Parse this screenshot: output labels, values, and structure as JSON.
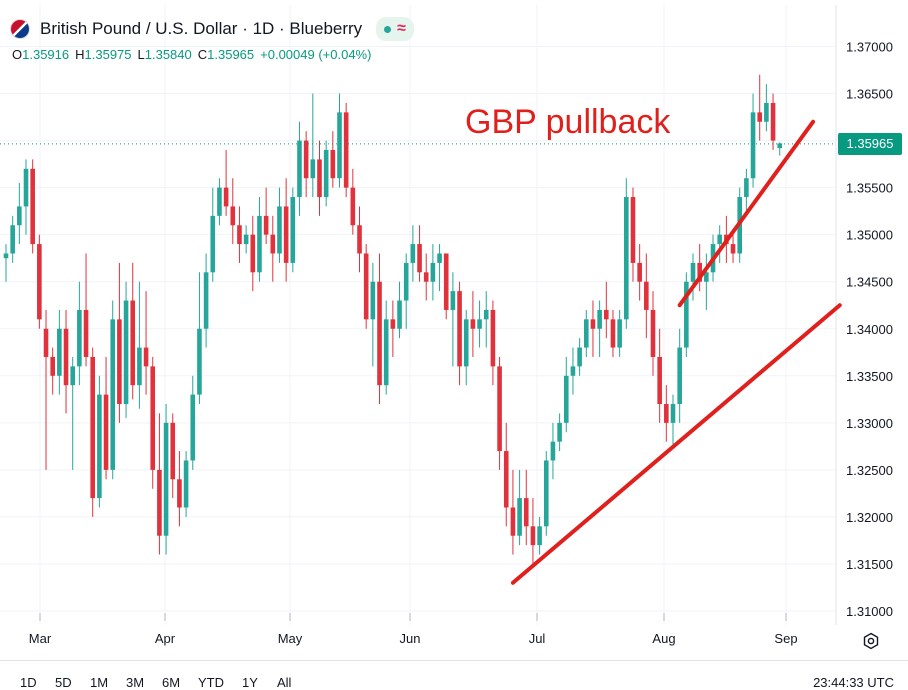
{
  "header": {
    "title": "British Pound / U.S. Dollar · 1D · Blueberry",
    "wave_symbol": "≈"
  },
  "ohlc": {
    "o_label": "O",
    "o": "1.35916",
    "h_label": "H",
    "h": "1.35975",
    "l_label": "L",
    "l": "1.35840",
    "c_label": "C",
    "c": "1.35965",
    "change": "+0.00049 (+0.04%)"
  },
  "annotation": "GBP pullback",
  "current_price": "1.35965",
  "range_buttons": [
    "1D",
    "5D",
    "1M",
    "3M",
    "6M",
    "YTD",
    "1Y",
    "All"
  ],
  "clock": "23:44:33 UTC",
  "colors": {
    "up": "#26a69a",
    "down": "#e0323c",
    "trendline": "#e0201c",
    "price_tag": "#089981"
  },
  "icons": {
    "flag": "gbp-usd-flag-icon",
    "settings": "gear-icon"
  },
  "chart_data": {
    "type": "candlestick",
    "ylim": [
      1.3085,
      1.3725
    ],
    "y_ticks": [
      "1.37000",
      "1.36500",
      "1.36000",
      "1.35500",
      "1.35000",
      "1.34500",
      "1.34000",
      "1.33500",
      "1.33000",
      "1.32500",
      "1.32000",
      "1.31500",
      "1.31000"
    ],
    "x_ticks": [
      "Mar",
      "Apr",
      "May",
      "Jun",
      "Jul",
      "Aug",
      "Sep"
    ],
    "candles": [
      [
        1.3475,
        1.349,
        1.345,
        1.348
      ],
      [
        1.348,
        1.352,
        1.347,
        1.351
      ],
      [
        1.351,
        1.3555,
        1.349,
        1.353
      ],
      [
        1.353,
        1.358,
        1.35,
        1.357
      ],
      [
        1.357,
        1.358,
        1.348,
        1.349
      ],
      [
        1.349,
        1.35,
        1.34,
        1.341
      ],
      [
        1.34,
        1.342,
        1.325,
        1.337
      ],
      [
        1.337,
        1.338,
        1.333,
        1.335
      ],
      [
        1.335,
        1.342,
        1.333,
        1.34
      ],
      [
        1.34,
        1.342,
        1.331,
        1.334
      ],
      [
        1.334,
        1.337,
        1.325,
        1.336
      ],
      [
        1.336,
        1.345,
        1.334,
        1.342
      ],
      [
        1.342,
        1.348,
        1.336,
        1.337
      ],
      [
        1.337,
        1.338,
        1.32,
        1.322
      ],
      [
        1.322,
        1.335,
        1.321,
        1.333
      ],
      [
        1.333,
        1.337,
        1.324,
        1.325
      ],
      [
        1.325,
        1.343,
        1.324,
        1.341
      ],
      [
        1.341,
        1.347,
        1.33,
        1.332
      ],
      [
        1.332,
        1.345,
        1.3305,
        1.343
      ],
      [
        1.343,
        1.347,
        1.3325,
        1.334
      ],
      [
        1.334,
        1.345,
        1.3315,
        1.338
      ],
      [
        1.338,
        1.344,
        1.333,
        1.336
      ],
      [
        1.336,
        1.337,
        1.323,
        1.325
      ],
      [
        1.325,
        1.331,
        1.316,
        1.318
      ],
      [
        1.318,
        1.332,
        1.316,
        1.33
      ],
      [
        1.33,
        1.331,
        1.322,
        1.324
      ],
      [
        1.324,
        1.327,
        1.319,
        1.321
      ],
      [
        1.321,
        1.327,
        1.32,
        1.326
      ],
      [
        1.326,
        1.335,
        1.325,
        1.333
      ],
      [
        1.333,
        1.346,
        1.332,
        1.34
      ],
      [
        1.34,
        1.348,
        1.338,
        1.346
      ],
      [
        1.346,
        1.355,
        1.345,
        1.352
      ],
      [
        1.352,
        1.356,
        1.351,
        1.355
      ],
      [
        1.355,
        1.359,
        1.352,
        1.353
      ],
      [
        1.353,
        1.356,
        1.349,
        1.351
      ],
      [
        1.351,
        1.353,
        1.347,
        1.349
      ],
      [
        1.349,
        1.351,
        1.348,
        1.35
      ],
      [
        1.35,
        1.352,
        1.344,
        1.346
      ],
      [
        1.346,
        1.354,
        1.345,
        1.352
      ],
      [
        1.352,
        1.355,
        1.349,
        1.35
      ],
      [
        1.35,
        1.352,
        1.345,
        1.348
      ],
      [
        1.348,
        1.355,
        1.347,
        1.353
      ],
      [
        1.353,
        1.356,
        1.345,
        1.347
      ],
      [
        1.347,
        1.355,
        1.346,
        1.354
      ],
      [
        1.354,
        1.362,
        1.352,
        1.36
      ],
      [
        1.36,
        1.361,
        1.354,
        1.356
      ],
      [
        1.356,
        1.365,
        1.354,
        1.358
      ],
      [
        1.358,
        1.36,
        1.352,
        1.354
      ],
      [
        1.354,
        1.36,
        1.353,
        1.359
      ],
      [
        1.359,
        1.361,
        1.355,
        1.356
      ],
      [
        1.356,
        1.365,
        1.355,
        1.363
      ],
      [
        1.363,
        1.364,
        1.354,
        1.355
      ],
      [
        1.355,
        1.357,
        1.35,
        1.351
      ],
      [
        1.351,
        1.353,
        1.346,
        1.348
      ],
      [
        1.348,
        1.349,
        1.34,
        1.341
      ],
      [
        1.341,
        1.347,
        1.336,
        1.345
      ],
      [
        1.345,
        1.348,
        1.332,
        1.334
      ],
      [
        1.334,
        1.343,
        1.333,
        1.341
      ],
      [
        1.341,
        1.343,
        1.337,
        1.34
      ],
      [
        1.34,
        1.345,
        1.339,
        1.343
      ],
      [
        1.343,
        1.348,
        1.34,
        1.347
      ],
      [
        1.347,
        1.351,
        1.345,
        1.349
      ],
      [
        1.349,
        1.351,
        1.345,
        1.346
      ],
      [
        1.346,
        1.348,
        1.343,
        1.345
      ],
      [
        1.345,
        1.349,
        1.343,
        1.347
      ],
      [
        1.347,
        1.349,
        1.344,
        1.348
      ],
      [
        1.348,
        1.348,
        1.341,
        1.342
      ],
      [
        1.342,
        1.346,
        1.336,
        1.344
      ],
      [
        1.344,
        1.345,
        1.334,
        1.336
      ],
      [
        1.336,
        1.342,
        1.334,
        1.341
      ],
      [
        1.341,
        1.344,
        1.337,
        1.34
      ],
      [
        1.34,
        1.343,
        1.338,
        1.341
      ],
      [
        1.341,
        1.344,
        1.338,
        1.342
      ],
      [
        1.342,
        1.343,
        1.334,
        1.336
      ],
      [
        1.336,
        1.337,
        1.325,
        1.327
      ],
      [
        1.327,
        1.33,
        1.319,
        1.321
      ],
      [
        1.321,
        1.325,
        1.316,
        1.318
      ],
      [
        1.318,
        1.325,
        1.317,
        1.322
      ],
      [
        1.322,
        1.325,
        1.317,
        1.319
      ],
      [
        1.319,
        1.322,
        1.315,
        1.317
      ],
      [
        1.317,
        1.32,
        1.316,
        1.319
      ],
      [
        1.319,
        1.327,
        1.318,
        1.326
      ],
      [
        1.326,
        1.33,
        1.324,
        1.328
      ],
      [
        1.328,
        1.331,
        1.327,
        1.33
      ],
      [
        1.33,
        1.337,
        1.329,
        1.335
      ],
      [
        1.335,
        1.338,
        1.333,
        1.336
      ],
      [
        1.336,
        1.339,
        1.335,
        1.338
      ],
      [
        1.338,
        1.342,
        1.337,
        1.341
      ],
      [
        1.341,
        1.343,
        1.337,
        1.34
      ],
      [
        1.34,
        1.343,
        1.337,
        1.342
      ],
      [
        1.342,
        1.345,
        1.339,
        1.341
      ],
      [
        1.341,
        1.342,
        1.337,
        1.338
      ],
      [
        1.338,
        1.342,
        1.337,
        1.341
      ],
      [
        1.341,
        1.356,
        1.34,
        1.354
      ],
      [
        1.354,
        1.355,
        1.345,
        1.347
      ],
      [
        1.347,
        1.349,
        1.343,
        1.345
      ],
      [
        1.345,
        1.348,
        1.339,
        1.342
      ],
      [
        1.342,
        1.344,
        1.335,
        1.337
      ],
      [
        1.337,
        1.34,
        1.33,
        1.332
      ],
      [
        1.332,
        1.334,
        1.328,
        1.33
      ],
      [
        1.33,
        1.333,
        1.3275,
        1.332
      ],
      [
        1.332,
        1.34,
        1.33,
        1.338
      ],
      [
        1.338,
        1.346,
        1.337,
        1.345
      ],
      [
        1.345,
        1.348,
        1.343,
        1.347
      ],
      [
        1.347,
        1.349,
        1.344,
        1.345
      ],
      [
        1.345,
        1.348,
        1.342,
        1.346
      ],
      [
        1.346,
        1.35,
        1.345,
        1.349
      ],
      [
        1.349,
        1.351,
        1.347,
        1.35
      ],
      [
        1.35,
        1.352,
        1.347,
        1.349
      ],
      [
        1.349,
        1.35,
        1.347,
        1.348
      ],
      [
        1.348,
        1.355,
        1.347,
        1.354
      ],
      [
        1.354,
        1.357,
        1.352,
        1.356
      ],
      [
        1.356,
        1.365,
        1.355,
        1.363
      ],
      [
        1.363,
        1.367,
        1.36,
        1.362
      ],
      [
        1.362,
        1.366,
        1.361,
        1.364
      ],
      [
        1.364,
        1.365,
        1.359,
        1.36
      ],
      [
        1.3592,
        1.3598,
        1.3584,
        1.3597
      ]
    ],
    "trendlines": [
      {
        "from": [
          76,
          1.313
        ],
        "to": [
          125,
          1.3425
        ]
      },
      {
        "from": [
          101,
          1.3425
        ],
        "to": [
          121,
          1.362
        ]
      }
    ],
    "last_price_line": 1.35965
  }
}
